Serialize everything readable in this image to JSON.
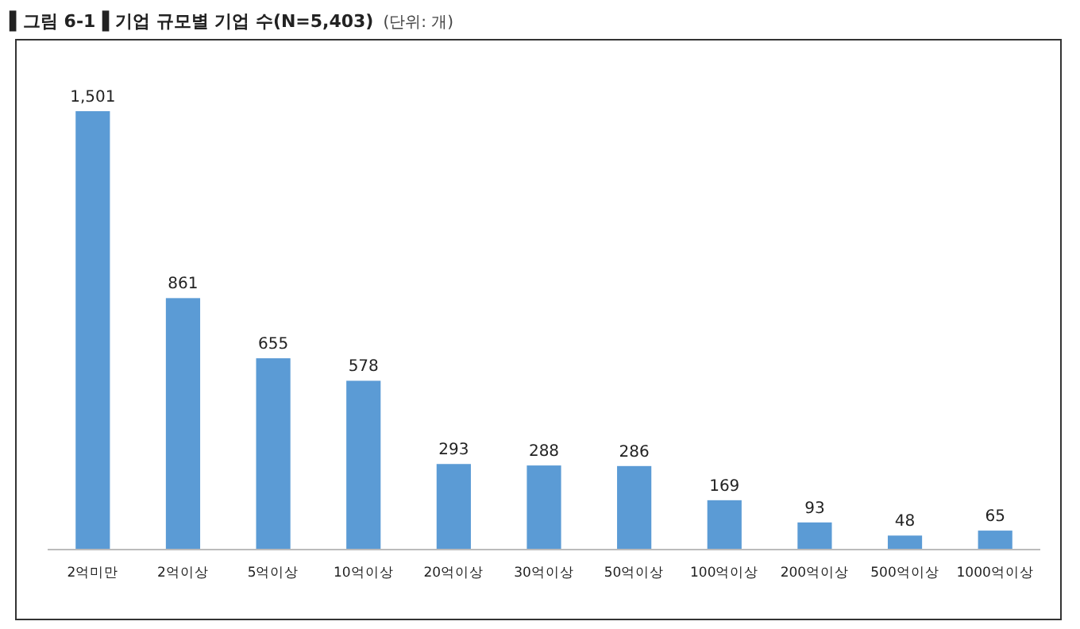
{
  "chart_data": {
    "type": "bar",
    "title": "▌그림 6-1▐ 기업 규모별 기업 수(N=5,403)",
    "subtitle": "(단위: 개)",
    "categories": [
      "2억미만",
      "2억이상",
      "5억이상",
      "10억이상",
      "20억이상",
      "30억이상",
      "50억이상",
      "100억이상",
      "200억이상",
      "500억이상",
      "1000억이상"
    ],
    "values": [
      1501,
      861,
      655,
      578,
      293,
      288,
      286,
      169,
      93,
      48,
      65
    ],
    "value_labels": [
      "1,501",
      "861",
      "655",
      "578",
      "293",
      "288",
      "286",
      "169",
      "93",
      "48",
      "65"
    ],
    "color": "#5b9bd5",
    "grid": false
  }
}
